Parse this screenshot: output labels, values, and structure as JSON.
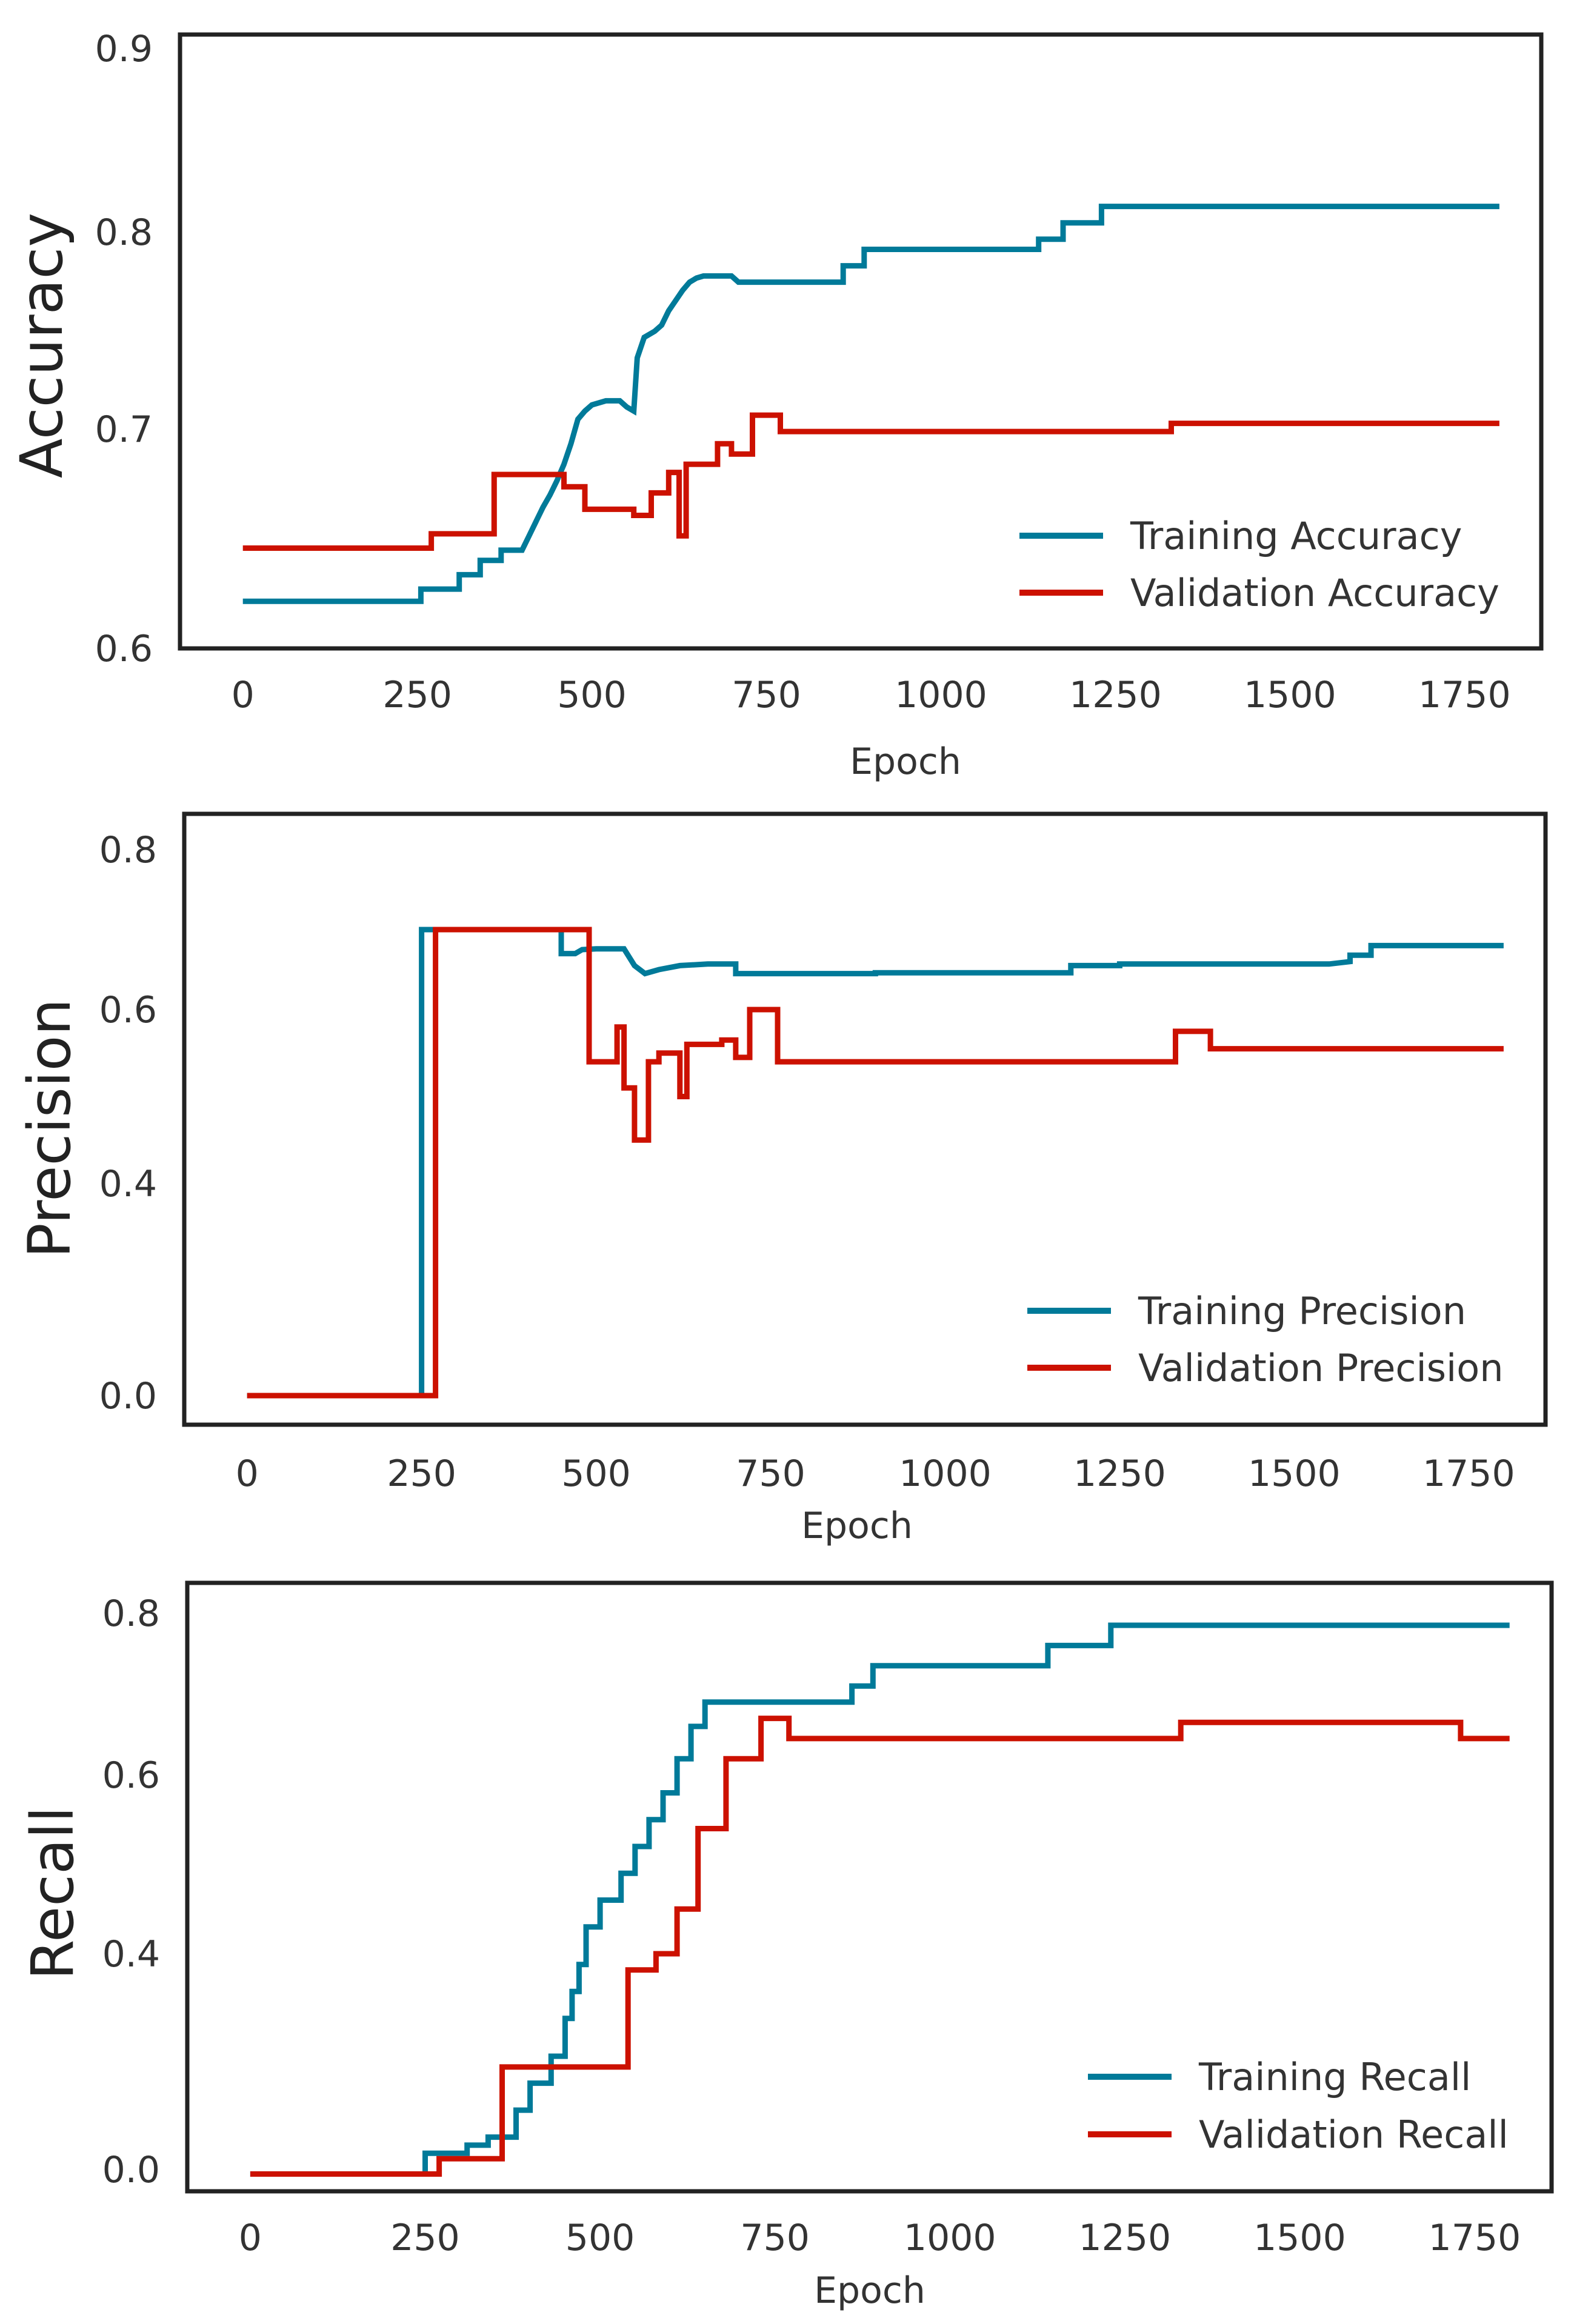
{
  "colors": {
    "training": "#007a99",
    "validation": "#cc1100"
  },
  "chart_data": [
    {
      "type": "line",
      "xlabel": "Epoch",
      "ylabel": "Accuracy",
      "xlim": [
        -90,
        1860
      ],
      "ylim": [
        0.6,
        0.9
      ],
      "xticks": [
        0,
        250,
        500,
        750,
        1000,
        1250,
        1500,
        1750
      ],
      "yticks": [
        0.6,
        0.7,
        0.8,
        0.9
      ],
      "legend_position": "lower-right",
      "series": [
        {
          "name": "Training Accuracy",
          "color_key": "training",
          "points": [
            [
              0,
              0.623
            ],
            [
              255,
              0.623
            ],
            [
              255,
              0.629
            ],
            [
              310,
              0.629
            ],
            [
              310,
              0.636
            ],
            [
              340,
              0.636
            ],
            [
              340,
              0.643
            ],
            [
              370,
              0.643
            ],
            [
              370,
              0.648
            ],
            [
              400,
              0.648
            ],
            [
              410,
              0.655
            ],
            [
              420,
              0.662
            ],
            [
              430,
              0.669
            ],
            [
              440,
              0.675
            ],
            [
              450,
              0.682
            ],
            [
              460,
              0.69
            ],
            [
              470,
              0.7
            ],
            [
              480,
              0.712
            ],
            [
              490,
              0.716
            ],
            [
              500,
              0.719
            ],
            [
              520,
              0.721
            ],
            [
              540,
              0.721
            ],
            [
              550,
              0.718
            ],
            [
              560,
              0.716
            ],
            [
              565,
              0.742
            ],
            [
              575,
              0.752
            ],
            [
              590,
              0.755
            ],
            [
              600,
              0.758
            ],
            [
              610,
              0.765
            ],
            [
              620,
              0.77
            ],
            [
              630,
              0.775
            ],
            [
              640,
              0.779
            ],
            [
              650,
              0.781
            ],
            [
              660,
              0.782
            ],
            [
              700,
              0.782
            ],
            [
              710,
              0.779
            ],
            [
              860,
              0.779
            ],
            [
              860,
              0.787
            ],
            [
              890,
              0.787
            ],
            [
              890,
              0.795
            ],
            [
              1140,
              0.795
            ],
            [
              1140,
              0.8
            ],
            [
              1175,
              0.8
            ],
            [
              1175,
              0.808
            ],
            [
              1230,
              0.808
            ],
            [
              1230,
              0.816
            ],
            [
              1800,
              0.816
            ]
          ]
        },
        {
          "name": "Validation Accuracy",
          "color_key": "validation",
          "points": [
            [
              0,
              0.649
            ],
            [
              270,
              0.649
            ],
            [
              270,
              0.656
            ],
            [
              360,
              0.656
            ],
            [
              360,
              0.685
            ],
            [
              460,
              0.685
            ],
            [
              460,
              0.679
            ],
            [
              490,
              0.679
            ],
            [
              490,
              0.668
            ],
            [
              560,
              0.668
            ],
            [
              560,
              0.665
            ],
            [
              585,
              0.665
            ],
            [
              585,
              0.676
            ],
            [
              610,
              0.676
            ],
            [
              610,
              0.686
            ],
            [
              625,
              0.686
            ],
            [
              625,
              0.655
            ],
            [
              635,
              0.655
            ],
            [
              635,
              0.69
            ],
            [
              680,
              0.69
            ],
            [
              680,
              0.7
            ],
            [
              700,
              0.7
            ],
            [
              700,
              0.695
            ],
            [
              730,
              0.695
            ],
            [
              730,
              0.714
            ],
            [
              770,
              0.714
            ],
            [
              770,
              0.706
            ],
            [
              1330,
              0.706
            ],
            [
              1330,
              0.71
            ],
            [
              1800,
              0.71
            ]
          ]
        }
      ]
    },
    {
      "type": "line",
      "xlabel": "Epoch",
      "ylabel": "Precision",
      "xlim": [
        -90,
        1860
      ],
      "yticks": [
        0.8,
        0.6,
        0.4,
        0.0
      ],
      "legend_position": "lower-right",
      "series": [
        {
          "name": "Training Precision",
          "color_key": "training",
          "points": [
            [
              0,
              0.0
            ],
            [
              250,
              0.0
            ],
            [
              250,
              0.7
            ],
            [
              450,
              0.7
            ],
            [
              450,
              0.67
            ],
            [
              470,
              0.67
            ],
            [
              480,
              0.675
            ],
            [
              500,
              0.676
            ],
            [
              540,
              0.676
            ],
            [
              555,
              0.655
            ],
            [
              570,
              0.645
            ],
            [
              590,
              0.65
            ],
            [
              620,
              0.655
            ],
            [
              660,
              0.657
            ],
            [
              700,
              0.657
            ],
            [
              700,
              0.645
            ],
            [
              900,
              0.645
            ],
            [
              900,
              0.646
            ],
            [
              1180,
              0.646
            ],
            [
              1180,
              0.655
            ],
            [
              1250,
              0.655
            ],
            [
              1250,
              0.657
            ],
            [
              1550,
              0.657
            ],
            [
              1580,
              0.66
            ],
            [
              1580,
              0.668
            ],
            [
              1610,
              0.668
            ],
            [
              1610,
              0.68
            ],
            [
              1800,
              0.68
            ]
          ]
        },
        {
          "name": "Validation Precision",
          "color_key": "validation",
          "points": [
            [
              0,
              0.0
            ],
            [
              270,
              0.0
            ],
            [
              270,
              0.7
            ],
            [
              490,
              0.7
            ],
            [
              490,
              0.54
            ],
            [
              530,
              0.54
            ],
            [
              530,
              0.58
            ],
            [
              540,
              0.58
            ],
            [
              540,
              0.51
            ],
            [
              555,
              0.51
            ],
            [
              555,
              0.45
            ],
            [
              575,
              0.45
            ],
            [
              575,
              0.54
            ],
            [
              590,
              0.54
            ],
            [
              590,
              0.55
            ],
            [
              620,
              0.55
            ],
            [
              620,
              0.5
            ],
            [
              630,
              0.5
            ],
            [
              630,
              0.56
            ],
            [
              680,
              0.56
            ],
            [
              680,
              0.565
            ],
            [
              700,
              0.565
            ],
            [
              700,
              0.545
            ],
            [
              720,
              0.545
            ],
            [
              720,
              0.6
            ],
            [
              760,
              0.6
            ],
            [
              760,
              0.54
            ],
            [
              1330,
              0.54
            ],
            [
              1330,
              0.575
            ],
            [
              1380,
              0.575
            ],
            [
              1380,
              0.555
            ],
            [
              1800,
              0.555
            ]
          ]
        }
      ]
    },
    {
      "type": "line",
      "xlabel": "Epoch",
      "ylabel": "Recall",
      "xlim": [
        -90,
        1860
      ],
      "yticks": [
        0.8,
        0.6,
        0.4,
        0.0
      ],
      "legend_position": "lower-right",
      "series": [
        {
          "name": "Training Recall",
          "color_key": "training",
          "points": [
            [
              0,
              -0.01
            ],
            [
              250,
              -0.01
            ],
            [
              250,
              0.03
            ],
            [
              310,
              0.03
            ],
            [
              310,
              0.045
            ],
            [
              340,
              0.045
            ],
            [
              340,
              0.06
            ],
            [
              380,
              0.06
            ],
            [
              380,
              0.11
            ],
            [
              400,
              0.11
            ],
            [
              400,
              0.16
            ],
            [
              430,
              0.16
            ],
            [
              430,
              0.21
            ],
            [
              450,
              0.21
            ],
            [
              450,
              0.28
            ],
            [
              460,
              0.28
            ],
            [
              460,
              0.33
            ],
            [
              470,
              0.33
            ],
            [
              470,
              0.38
            ],
            [
              480,
              0.38
            ],
            [
              480,
              0.43
            ],
            [
              500,
              0.43
            ],
            [
              500,
              0.46
            ],
            [
              530,
              0.46
            ],
            [
              530,
              0.49
            ],
            [
              550,
              0.49
            ],
            [
              550,
              0.52
            ],
            [
              570,
              0.52
            ],
            [
              570,
              0.55
            ],
            [
              590,
              0.55
            ],
            [
              590,
              0.58
            ],
            [
              610,
              0.58
            ],
            [
              610,
              0.62
            ],
            [
              630,
              0.62
            ],
            [
              630,
              0.66
            ],
            [
              650,
              0.66
            ],
            [
              650,
              0.69
            ],
            [
              860,
              0.69
            ],
            [
              860,
              0.71
            ],
            [
              890,
              0.71
            ],
            [
              890,
              0.735
            ],
            [
              1140,
              0.735
            ],
            [
              1140,
              0.76
            ],
            [
              1230,
              0.76
            ],
            [
              1230,
              0.785
            ],
            [
              1800,
              0.785
            ]
          ]
        },
        {
          "name": "Validation Recall",
          "color_key": "validation",
          "points": [
            [
              0,
              -0.01
            ],
            [
              270,
              -0.01
            ],
            [
              270,
              0.02
            ],
            [
              360,
              0.02
            ],
            [
              360,
              0.19
            ],
            [
              540,
              0.19
            ],
            [
              540,
              0.37
            ],
            [
              580,
              0.37
            ],
            [
              580,
              0.4
            ],
            [
              610,
              0.4
            ],
            [
              610,
              0.45
            ],
            [
              640,
              0.45
            ],
            [
              640,
              0.54
            ],
            [
              680,
              0.54
            ],
            [
              680,
              0.62
            ],
            [
              730,
              0.62
            ],
            [
              730,
              0.67
            ],
            [
              770,
              0.67
            ],
            [
              770,
              0.645
            ],
            [
              1330,
              0.645
            ],
            [
              1330,
              0.665
            ],
            [
              1730,
              0.665
            ],
            [
              1730,
              0.645
            ],
            [
              1800,
              0.645
            ]
          ]
        }
      ]
    }
  ]
}
